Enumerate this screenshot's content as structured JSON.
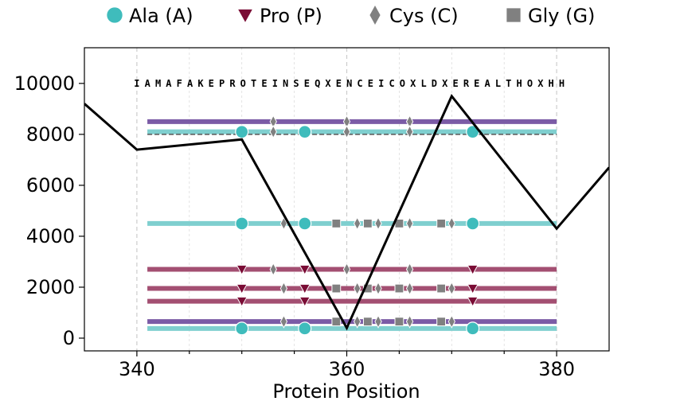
{
  "chart_data": {
    "type": "line",
    "title": "",
    "xlabel": "Protein Position",
    "ylabel": "",
    "xlim": [
      335,
      385
    ],
    "ylim": [
      -500,
      11400
    ],
    "x_ticks": [
      340,
      360,
      380
    ],
    "y_ticks": [
      0,
      2000,
      4000,
      6000,
      8000,
      10000
    ],
    "grid": "vertical dashed",
    "legend": {
      "placement": "top",
      "entries": [
        {
          "label": "Ala (A)",
          "marker": "circle",
          "color": "#3fbcbc"
        },
        {
          "label": "Pro (P)",
          "marker": "triangle-down",
          "color": "#7a0c35"
        },
        {
          "label": "Cys (C)",
          "marker": "diamond",
          "color": "#808080"
        },
        {
          "label": "Gly (G)",
          "marker": "square",
          "color": "#808080"
        }
      ]
    },
    "sequence": {
      "start": 340,
      "y": 10000,
      "residues": "IAMAFAKEPROTEINSEQXENCEICOXLDXEREALTHOXHH"
    },
    "line_series": {
      "color": "#000000",
      "x": [
        335,
        340,
        350,
        360,
        370,
        380,
        385
      ],
      "y": [
        9200,
        7400,
        7800,
        400,
        9500,
        4300,
        6700
      ]
    },
    "bands": [
      {
        "y": 8500,
        "color": "#7b5ba6",
        "x_range": [
          341,
          380
        ]
      },
      {
        "y": 8100,
        "color": "#7fcfcf",
        "x_range": [
          341,
          380
        ]
      },
      {
        "y": 4500,
        "color": "#7fcfcf",
        "x_range": [
          341,
          380
        ]
      },
      {
        "y": 2700,
        "color": "#a34f72",
        "x_range": [
          341,
          380
        ]
      },
      {
        "y": 1950,
        "color": "#a34f72",
        "x_range": [
          341,
          380
        ]
      },
      {
        "y": 1450,
        "color": "#a34f72",
        "x_range": [
          341,
          380
        ]
      },
      {
        "y": 650,
        "color": "#7b5ba6",
        "x_range": [
          341,
          380
        ]
      },
      {
        "y": 380,
        "color": "#7fcfcf",
        "x_range": [
          341,
          380
        ]
      }
    ],
    "reference_line": {
      "y": 8000,
      "style": "dashed",
      "color": "#555555",
      "x_range": [
        341,
        380
      ]
    },
    "markers": [
      {
        "type": "diamond",
        "y": 8500,
        "x": [
          353,
          360,
          366
        ]
      },
      {
        "type": "circle",
        "y": 8100,
        "x": [
          350,
          356,
          372
        ]
      },
      {
        "type": "diamond",
        "y": 8100,
        "x": [
          353,
          360,
          366
        ]
      },
      {
        "type": "circle",
        "y": 4500,
        "x": [
          350,
          356,
          372
        ]
      },
      {
        "type": "diamond",
        "y": 4500,
        "x": [
          354,
          361,
          363,
          366,
          370
        ]
      },
      {
        "type": "square",
        "y": 4500,
        "x": [
          359,
          362,
          365,
          369
        ]
      },
      {
        "type": "triangle",
        "y": 2700,
        "x": [
          350,
          356,
          372
        ]
      },
      {
        "type": "diamond",
        "y": 2700,
        "x": [
          353,
          360,
          366
        ]
      },
      {
        "type": "triangle",
        "y": 1950,
        "x": [
          350,
          356,
          372
        ]
      },
      {
        "type": "diamond",
        "y": 1950,
        "x": [
          354,
          361,
          363,
          366,
          370
        ]
      },
      {
        "type": "square",
        "y": 1950,
        "x": [
          359,
          362,
          365,
          369
        ]
      },
      {
        "type": "triangle",
        "y": 1450,
        "x": [
          350,
          356,
          372
        ]
      },
      {
        "type": "diamond",
        "y": 650,
        "x": [
          354,
          361,
          363,
          366,
          370
        ]
      },
      {
        "type": "square",
        "y": 650,
        "x": [
          359,
          362,
          365,
          369
        ]
      },
      {
        "type": "circle",
        "y": 380,
        "x": [
          350,
          356,
          372
        ]
      }
    ],
    "marker_colors": {
      "circle": "#3fbcbc",
      "triangle": "#7a0c35",
      "diamond": "#808080",
      "square": "#808080"
    }
  }
}
